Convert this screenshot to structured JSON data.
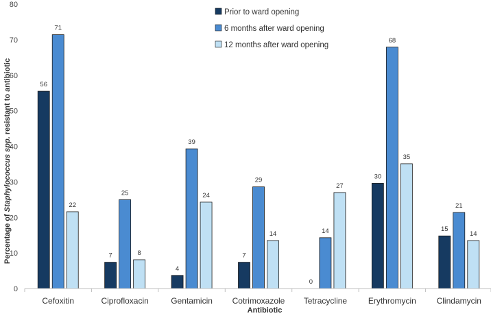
{
  "chart_data": {
    "type": "bar",
    "title": "",
    "xlabel": "Antibiotic",
    "ylabel_parts": [
      "Percentage of ",
      "Staphylococcus spp.",
      " resistant to antibiotic"
    ],
    "ylim": [
      0,
      80
    ],
    "yticks": [
      0,
      10,
      20,
      30,
      40,
      50,
      60,
      70,
      80
    ],
    "grid": false,
    "legend_position": "top-center",
    "categories": [
      "Cefoxitin",
      "Ciprofloxacin",
      "Gentamicin",
      "Cotrimoxazole",
      "Tetracycline",
      "Erythromycin",
      "Clindamycin"
    ],
    "series": [
      {
        "name": "Prior to ward opening",
        "color": "#163a61",
        "values": [
          55.5,
          7.4,
          3.7,
          7.4,
          0,
          29.6,
          14.8
        ],
        "labels": [
          "56",
          "7",
          "4",
          "7",
          "0",
          "30",
          "15"
        ]
      },
      {
        "name": "6 months after ward opening",
        "color": "#4a8bd1",
        "values": [
          71.4,
          25.0,
          39.3,
          28.6,
          14.3,
          67.9,
          21.4
        ],
        "labels": [
          "71",
          "25",
          "39",
          "29",
          "14",
          "68",
          "21"
        ]
      },
      {
        "name": "12 months after ward opening",
        "color": "#bfe0f4",
        "values": [
          21.6,
          8.1,
          24.3,
          13.5,
          27.0,
          35.1,
          13.5
        ],
        "labels": [
          "22",
          "8",
          "24",
          "14",
          "27",
          "35",
          "14"
        ]
      }
    ]
  }
}
